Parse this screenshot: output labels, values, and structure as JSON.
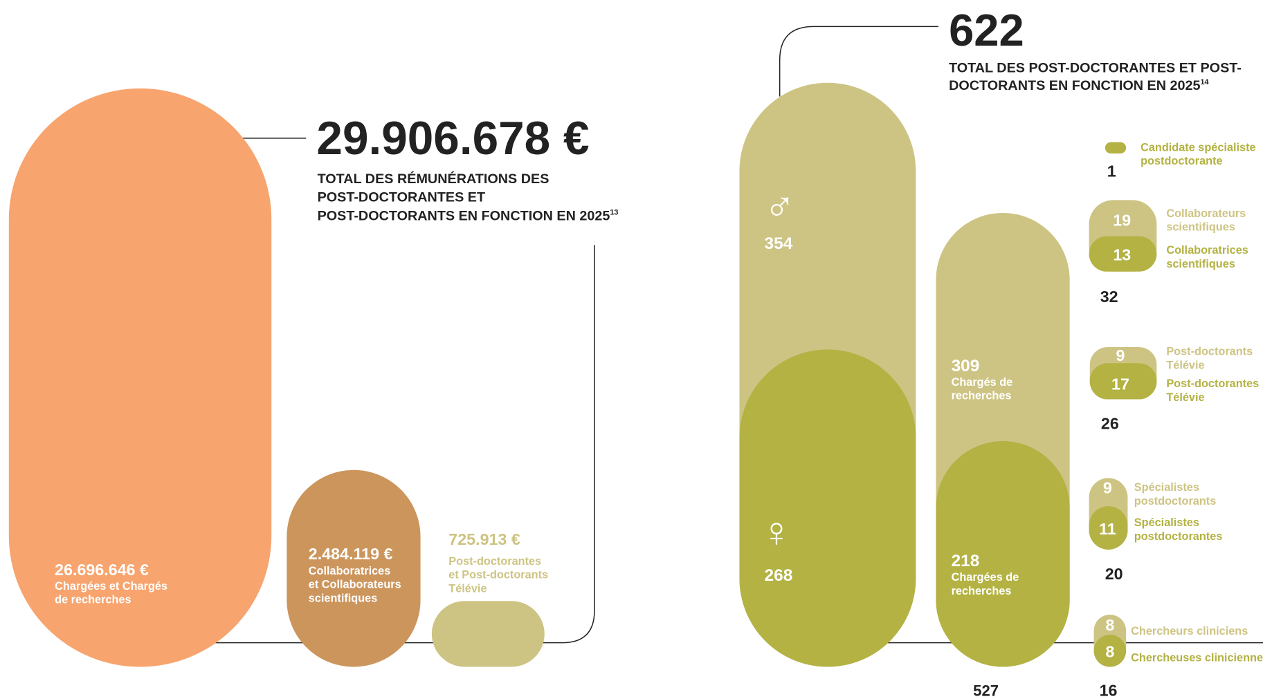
{
  "salaries": {
    "total": "29.906.678 €",
    "title_lines": [
      "TOTAL DES RÉMUNÉRATIONS DES",
      "POST-DOCTORANTES ET",
      "POST-DOCTORANTS EN FONCTION EN 2025"
    ],
    "footnote": "13",
    "items": [
      {
        "amount": "26.696.646 €",
        "label_lines": [
          "Chargées et Chargés",
          "de recherches"
        ]
      },
      {
        "amount": "2.484.119 €",
        "label_lines": [
          "Collaboratrices",
          "et Collaborateurs",
          "scientifiques"
        ]
      },
      {
        "amount": "725.913 €",
        "label_lines": [
          "Post-doctorantes",
          "et Post-doctorants",
          "Télévie"
        ]
      }
    ]
  },
  "headcount": {
    "total": "622",
    "title_lines": [
      "TOTAL DES POST-DOCTORANTES ET POST-",
      "DOCTORANTS EN FONCTION EN 2025"
    ],
    "footnote": "14",
    "men_symbol": "♂",
    "men": "354",
    "women_symbol": "♀",
    "women": "268",
    "researchers": {
      "men": "309",
      "men_label": [
        "Chargés de",
        "recherches"
      ],
      "women": "218",
      "women_label": [
        "Chargées de",
        "recherches"
      ],
      "total": "527"
    },
    "candidate": {
      "label": [
        "Candidate spécialiste",
        "postdoctorante"
      ],
      "total": "1"
    },
    "collaborators": {
      "men": "19",
      "men_label": [
        "Collaborateurs",
        "scientifiques"
      ],
      "women": "13",
      "women_label": [
        "Collaboratrices",
        "scientifiques"
      ],
      "total": "32"
    },
    "televie": {
      "men": "9",
      "men_label": [
        "Post-doctorants",
        "Télévie"
      ],
      "women": "17",
      "women_label": [
        "Post-doctorantes",
        "Télévie"
      ],
      "total": "26"
    },
    "specialists": {
      "men": "9",
      "men_label": [
        "Spécialistes",
        "postdoctorants"
      ],
      "women": "11",
      "women_label": [
        "Spécialistes",
        "postdoctorantes"
      ],
      "total": "20"
    },
    "clinicians": {
      "men": "8",
      "men_label": [
        "Chercheurs cliniciens"
      ],
      "women": "8",
      "women_label": [
        "Chercheuses cliniciennes"
      ],
      "total": "16"
    }
  }
}
